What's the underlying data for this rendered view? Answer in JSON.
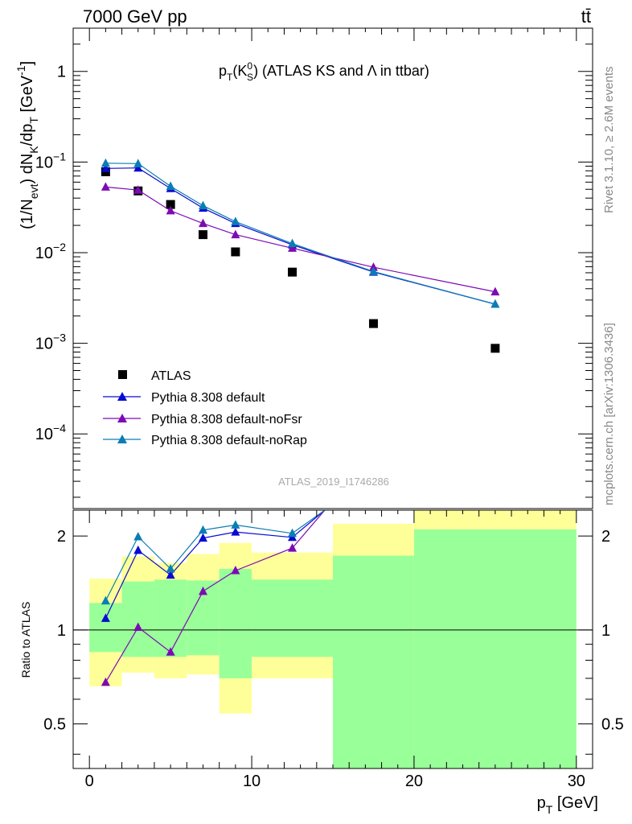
{
  "header": {
    "energy_label": "7000 GeV pp",
    "process_label": "tt̄",
    "analysis_id": "ATLAS_2019_I1746286",
    "side_label_top": "Rivet 3.1.10, ≥ 2.6M events",
    "side_label_bottom": "mcplots.cern.ch [arXiv:1306.3436]"
  },
  "colors": {
    "data": "#000000",
    "default": "#0a0ad2",
    "noFsr": "#7d0ab4",
    "noRap": "#0a7db4",
    "band_outer": "#ffff99",
    "band_inner": "#99ff99"
  },
  "chart_data": [
    {
      "type": "scatter",
      "panel": "main",
      "title_parts": {
        "p": "p",
        "T": "T",
        "K": "(K",
        "zero": "0",
        "S": "S",
        "rest": ") (ATLAS KS and Λ in ttbar)"
      },
      "ylabel_parts": {
        "a": "(1/N",
        "b": "evt",
        "c": ") dN",
        "d": "K",
        "e": "/dp",
        "f": "T",
        "g": " [GeV",
        "h": "-1",
        "i": "]"
      },
      "yscale": "log",
      "ylim": [
        1.5e-05,
        3
      ],
      "xlim": [
        -1,
        31
      ],
      "ytick_labels": [
        {
          "v": 1,
          "base": "1",
          "exp": ""
        },
        {
          "v": 0.1,
          "base": "10",
          "exp": "−1"
        },
        {
          "v": 0.01,
          "base": "10",
          "exp": "−2"
        },
        {
          "v": 0.001,
          "base": "10",
          "exp": "−3"
        },
        {
          "v": 0.0001,
          "base": "10",
          "exp": "−4"
        }
      ],
      "legend_position": "bottom-left",
      "series": [
        {
          "name": "ATLAS",
          "color": "#000000",
          "marker": "square",
          "x": [
            1,
            3,
            5,
            7,
            9,
            12.5,
            17.5,
            25
          ],
          "y": [
            0.078,
            0.048,
            0.034,
            0.0158,
            0.0102,
            0.0061,
            0.00165,
            0.00088
          ]
        },
        {
          "name": "Pythia 8.308 default",
          "color": "#0a0ad2",
          "marker": "triangle",
          "x": [
            1,
            3,
            5,
            7,
            9,
            12.5,
            17.5,
            25
          ],
          "y": [
            0.085,
            0.086,
            0.051,
            0.031,
            0.021,
            0.0122,
            0.0061,
            0.0027
          ]
        },
        {
          "name": "Pythia 8.308 default-noFsr",
          "color": "#7d0ab4",
          "marker": "triangle",
          "x": [
            1,
            3,
            5,
            7,
            9,
            12.5,
            17.5,
            25
          ],
          "y": [
            0.053,
            0.049,
            0.029,
            0.021,
            0.0158,
            0.0112,
            0.0069,
            0.0037
          ]
        },
        {
          "name": "Pythia 8.308 default-noRap",
          "color": "#0a7db4",
          "marker": "triangle",
          "x": [
            1,
            3,
            5,
            7,
            9,
            12.5,
            17.5,
            25
          ],
          "y": [
            0.097,
            0.096,
            0.054,
            0.033,
            0.022,
            0.0126,
            0.0062,
            0.0027
          ]
        }
      ]
    },
    {
      "type": "line",
      "panel": "ratio",
      "ylabel": "Ratio to ATLAS",
      "xlabel_parts": {
        "p": "p",
        "T": "T",
        "unit": " [GeV]"
      },
      "xlim": [
        -1,
        31
      ],
      "ylim": [
        0.36,
        2.42
      ],
      "x_ticks": [
        0,
        10,
        20,
        30
      ],
      "y_ticks": [
        0.5,
        1,
        2
      ],
      "bands": [
        {
          "x0": 0,
          "x1": 2,
          "outer": [
            0.66,
            1.46
          ],
          "inner": [
            0.85,
            1.22
          ]
        },
        {
          "x0": 2,
          "x1": 4,
          "outer": [
            0.73,
            1.72
          ],
          "inner": [
            0.82,
            1.43
          ]
        },
        {
          "x0": 4,
          "x1": 6,
          "outer": [
            0.7,
            1.64
          ],
          "inner": [
            0.82,
            1.45
          ]
        },
        {
          "x0": 6,
          "x1": 8,
          "outer": [
            0.72,
            1.75
          ],
          "inner": [
            0.83,
            1.44
          ]
        },
        {
          "x0": 8,
          "x1": 10,
          "outer": [
            0.54,
            1.9
          ],
          "inner": [
            0.7,
            1.57
          ]
        },
        {
          "x0": 10,
          "x1": 15,
          "outer": [
            0.7,
            1.77
          ],
          "inner": [
            0.82,
            1.45
          ]
        },
        {
          "x0": 15,
          "x1": 20,
          "outer": [
            0.36,
            2.19
          ],
          "inner": [
            0.36,
            1.73
          ]
        },
        {
          "x0": 20,
          "x1": 30,
          "outer": [
            0.36,
            2.42
          ],
          "inner": [
            0.36,
            2.1
          ]
        }
      ],
      "series": [
        {
          "name": "Pythia 8.308 default",
          "color": "#0a0ad2",
          "x": [
            1,
            3,
            5,
            7,
            9,
            12.5,
            14.5
          ],
          "y": [
            1.09,
            1.8,
            1.5,
            1.97,
            2.06,
            1.98,
            2.42
          ]
        },
        {
          "name": "Pythia 8.308 default-noFsr",
          "color": "#7d0ab4",
          "x": [
            1,
            3,
            5,
            7,
            9,
            12.5,
            14.5
          ],
          "y": [
            0.68,
            1.02,
            0.85,
            1.33,
            1.55,
            1.83,
            2.42
          ]
        },
        {
          "name": "Pythia 8.308 default-noRap",
          "color": "#0a7db4",
          "x": [
            1,
            3,
            5,
            7,
            9,
            12.5,
            14.5
          ],
          "y": [
            1.24,
            1.99,
            1.57,
            2.09,
            2.17,
            2.04,
            2.42
          ]
        }
      ]
    }
  ]
}
